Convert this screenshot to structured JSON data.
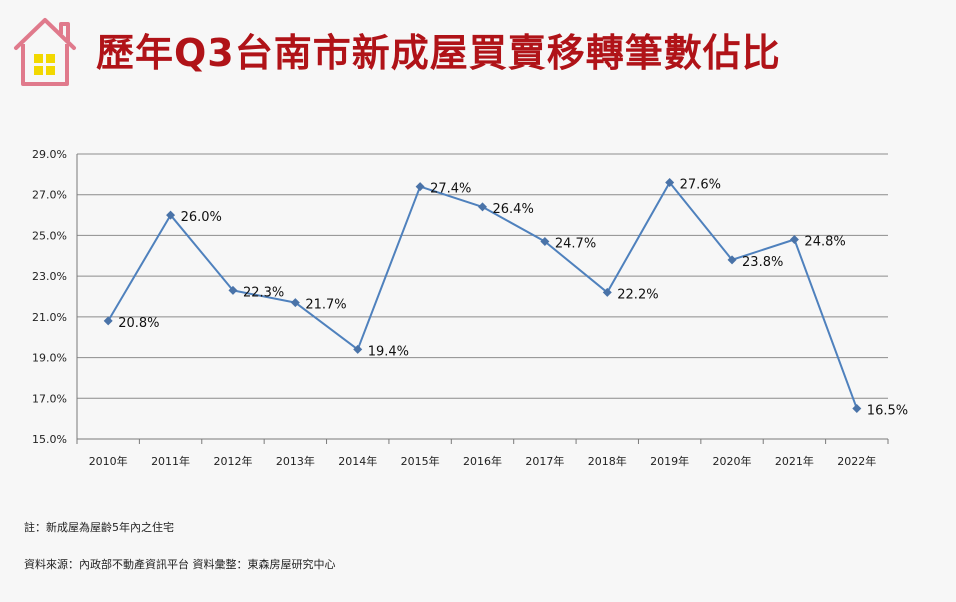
{
  "header": {
    "title": "歷年Q3台南市新成屋買賣移轉筆數佔比"
  },
  "colors": {
    "title": "#b01318",
    "logo_house": "#e07a8c",
    "logo_window": "#f2d800",
    "series": "#4f81bd",
    "marker": "#4a73a8",
    "grid": "#8c8c8c"
  },
  "chart_data": {
    "type": "line",
    "title": "",
    "xlabel": "",
    "ylabel": "",
    "categories": [
      "2010年",
      "2011年",
      "2012年",
      "2013年",
      "2014年",
      "2015年",
      "2016年",
      "2017年",
      "2018年",
      "2019年",
      "2020年",
      "2021年",
      "2022年"
    ],
    "series": [
      {
        "values": [
          20.8,
          26.0,
          22.3,
          21.7,
          19.4,
          27.4,
          26.4,
          24.7,
          22.2,
          27.6,
          23.8,
          24.8,
          16.5
        ],
        "data_labels": [
          "20.8%",
          "26.0%",
          "22.3%",
          "21.7%",
          "19.4%",
          "27.4%",
          "26.4%",
          "24.7%",
          "22.2%",
          "27.6%",
          "23.8%",
          "24.8%",
          "16.5%"
        ]
      }
    ],
    "ylim": [
      15.0,
      29.0
    ],
    "yticks": [
      15.0,
      17.0,
      19.0,
      21.0,
      23.0,
      25.0,
      27.0,
      29.0
    ],
    "ytick_labels": [
      "15.0%",
      "17.0%",
      "19.0%",
      "21.0%",
      "23.0%",
      "25.0%",
      "27.0%",
      "29.0%"
    ],
    "grid": true,
    "legend": "none",
    "marker": "diamond"
  },
  "notes": {
    "note": "註：新成屋為屋齡5年內之住宅",
    "source": "資料來源：內政部不動產資訊平台 資料彙整：東森房屋研究中心"
  }
}
